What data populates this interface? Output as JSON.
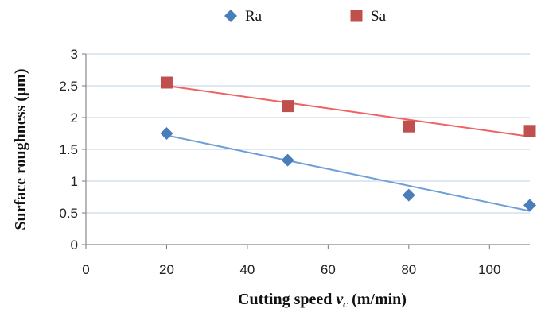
{
  "chart_data": {
    "type": "scatter",
    "xlabel": "Cutting speed ",
    "xlabel_var": "v",
    "xlabel_sub": "c",
    "xlabel_unit": " (m/min)",
    "ylabel": "Surface roughness (μm)",
    "xlim": [
      0,
      110
    ],
    "ylim": [
      0,
      3
    ],
    "x_ticks": [
      "0",
      "20",
      "40",
      "60",
      "80",
      "100"
    ],
    "y_ticks": [
      "0",
      "0.5",
      "1",
      "1.5",
      "2",
      "2.5",
      "3"
    ],
    "grid": "horizontal",
    "legend_position": "top",
    "series": [
      {
        "name": "Ra",
        "marker": "diamond",
        "color": "#4a7ebb",
        "trend_color": "#6f9fd8",
        "x": [
          20,
          50,
          80,
          110
        ],
        "y": [
          1.75,
          1.33,
          0.78,
          0.62
        ],
        "trendline": [
          [
            20,
            1.72
          ],
          [
            110,
            0.53
          ]
        ]
      },
      {
        "name": "Sa",
        "marker": "square",
        "color": "#c0504d",
        "trend_color": "#f06262",
        "x": [
          20,
          50,
          80,
          110
        ],
        "y": [
          2.55,
          2.18,
          1.86,
          1.79
        ],
        "trendline": [
          [
            20,
            2.5
          ],
          [
            110,
            1.7
          ]
        ]
      }
    ]
  }
}
